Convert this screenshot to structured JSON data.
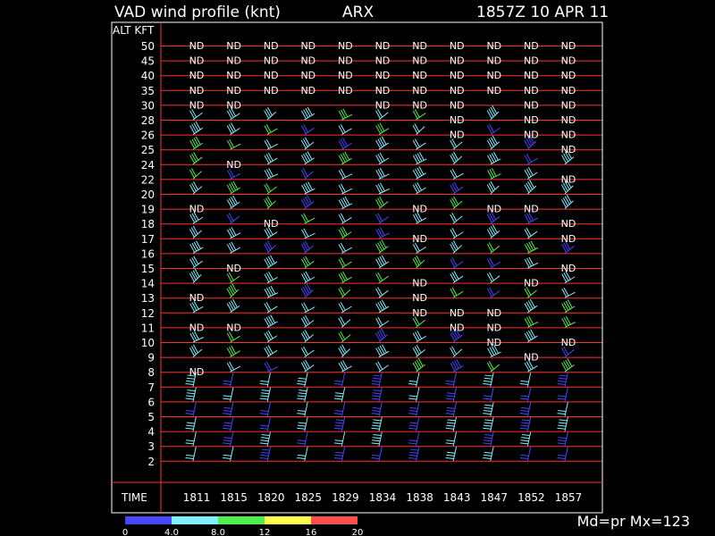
{
  "header": {
    "title": "VAD wind profile (knt)",
    "station": "ARX",
    "datetime": "1857Z 10 APR 11"
  },
  "footer": {
    "mode": "Md=pr Mx=123"
  },
  "colorbar": {
    "ticks": [
      "0",
      "4.0",
      "8.0",
      "12",
      "16",
      "20"
    ],
    "colors": [
      "#4646ff",
      "#7ff0ff",
      "#4ef04e",
      "#ffff4e",
      "#ff4e4e"
    ]
  },
  "chart_data": {
    "type": "table",
    "ylabel": "ALT KFT",
    "xlabel": "TIME",
    "y_levels": [
      "50",
      "45",
      "40",
      "35",
      "30",
      "28",
      "26",
      "25",
      "24",
      "22",
      "20",
      "19",
      "18",
      "17",
      "16",
      "15",
      "14",
      "13",
      "12",
      "11",
      "10",
      "9",
      "8",
      "7",
      "6",
      "5",
      "4",
      "3",
      "2"
    ],
    "x_times": [
      "1811",
      "1815",
      "1820",
      "1825",
      "1829",
      "1834",
      "1838",
      "1843",
      "1847",
      "1852",
      "1857"
    ],
    "no_data_marker": "ND",
    "no_data_cells": [
      [
        "50",
        0
      ],
      [
        "50",
        1
      ],
      [
        "50",
        2
      ],
      [
        "50",
        3
      ],
      [
        "50",
        4
      ],
      [
        "50",
        5
      ],
      [
        "50",
        6
      ],
      [
        "50",
        7
      ],
      [
        "50",
        8
      ],
      [
        "50",
        9
      ],
      [
        "50",
        10
      ],
      [
        "45",
        0
      ],
      [
        "45",
        1
      ],
      [
        "45",
        2
      ],
      [
        "45",
        3
      ],
      [
        "45",
        4
      ],
      [
        "45",
        5
      ],
      [
        "45",
        6
      ],
      [
        "45",
        7
      ],
      [
        "45",
        8
      ],
      [
        "45",
        9
      ],
      [
        "45",
        10
      ],
      [
        "40",
        0
      ],
      [
        "40",
        1
      ],
      [
        "40",
        2
      ],
      [
        "40",
        3
      ],
      [
        "40",
        4
      ],
      [
        "40",
        5
      ],
      [
        "40",
        6
      ],
      [
        "40",
        7
      ],
      [
        "40",
        8
      ],
      [
        "40",
        9
      ],
      [
        "40",
        10
      ],
      [
        "35",
        0
      ],
      [
        "35",
        1
      ],
      [
        "35",
        2
      ],
      [
        "35",
        3
      ],
      [
        "35",
        4
      ],
      [
        "35",
        5
      ],
      [
        "35",
        6
      ],
      [
        "35",
        7
      ],
      [
        "35",
        8
      ],
      [
        "35",
        9
      ],
      [
        "35",
        10
      ],
      [
        "30",
        0
      ],
      [
        "30",
        1
      ],
      [
        "30",
        5
      ],
      [
        "30",
        6
      ],
      [
        "30",
        7
      ],
      [
        "30",
        9
      ],
      [
        "30",
        10
      ],
      [
        "28",
        7
      ],
      [
        "28",
        9
      ],
      [
        "28",
        10
      ],
      [
        "26",
        7
      ],
      [
        "26",
        9
      ],
      [
        "26",
        10
      ],
      [
        "25",
        10
      ],
      [
        "24",
        1
      ],
      [
        "22",
        10
      ],
      [
        "19",
        0
      ],
      [
        "19",
        6
      ],
      [
        "19",
        8
      ],
      [
        "19",
        9
      ],
      [
        "18",
        2
      ],
      [
        "18",
        10
      ],
      [
        "17",
        6
      ],
      [
        "17",
        10
      ],
      [
        "15",
        1
      ],
      [
        "15",
        10
      ],
      [
        "14",
        6
      ],
      [
        "14",
        9
      ],
      [
        "13",
        0
      ],
      [
        "13",
        6
      ],
      [
        "12",
        6
      ],
      [
        "12",
        7
      ],
      [
        "12",
        8
      ],
      [
        "11",
        0
      ],
      [
        "11",
        1
      ],
      [
        "11",
        7
      ],
      [
        "11",
        8
      ],
      [
        "10",
        8
      ],
      [
        "10",
        10
      ],
      [
        "9",
        9
      ],
      [
        "8",
        0
      ]
    ],
    "barb_rows": [
      "28",
      "26",
      "25",
      "24",
      "22",
      "20",
      "19",
      "18",
      "17",
      "16",
      "15",
      "14",
      "13",
      "12",
      "11",
      "10",
      "9",
      "8",
      "7",
      "6",
      "5",
      "4",
      "3",
      "2"
    ]
  }
}
